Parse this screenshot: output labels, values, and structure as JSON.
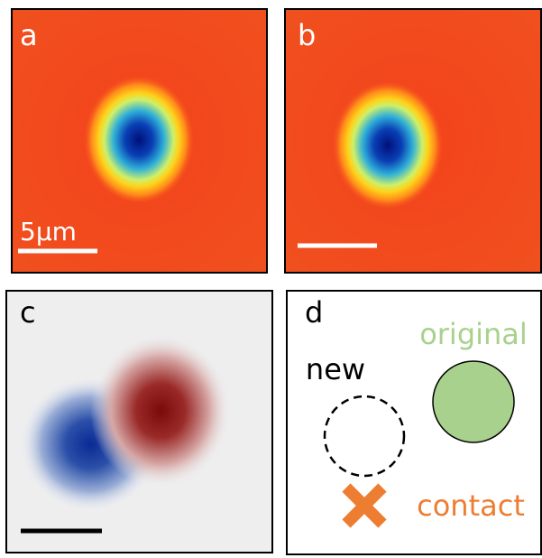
{
  "panels": [
    {
      "label": "a",
      "scale_bar": "5μm"
    },
    {
      "label": "b"
    },
    {
      "label": "c"
    },
    {
      "label": "d",
      "legend": [
        "original",
        "new",
        "contact"
      ]
    }
  ]
}
